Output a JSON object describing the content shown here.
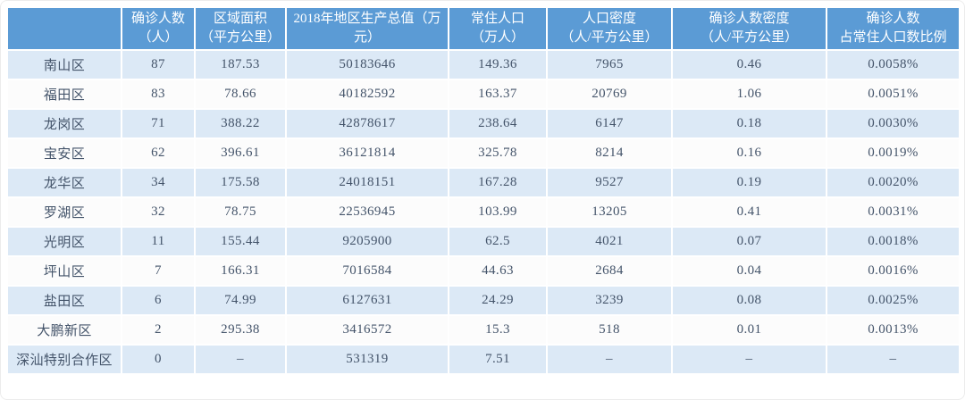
{
  "colors": {
    "header_bg": "#5b9bd5",
    "header_text": "#ffffff",
    "row_odd_bg": "#dce9f6",
    "row_even_bg": "#fcfcfc",
    "body_text": "#44546a",
    "separator": "#ffffff"
  },
  "chart_data": {
    "type": "table",
    "title": "",
    "columns": [
      "",
      "确诊人数\n（人）",
      "区域面积\n（平方公里）",
      "2018年地区生产总值（万\n元）",
      "常住人口\n（万人）",
      "人口密度\n（人/平方公里）",
      "确诊人数密度\n（人/平方公里）",
      "确诊人数\n占常住人口数比例"
    ],
    "rows": [
      [
        "南山区",
        "87",
        "187.53",
        "50183646",
        "149.36",
        "7965",
        "0.46",
        "0.0058%"
      ],
      [
        "福田区",
        "83",
        "78.66",
        "40182592",
        "163.37",
        "20769",
        "1.06",
        "0.0051%"
      ],
      [
        "龙岗区",
        "71",
        "388.22",
        "42878617",
        "238.64",
        "6147",
        "0.18",
        "0.0030%"
      ],
      [
        "宝安区",
        "62",
        "396.61",
        "36121814",
        "325.78",
        "8214",
        "0.16",
        "0.0019%"
      ],
      [
        "龙华区",
        "34",
        "175.58",
        "24018151",
        "167.28",
        "9527",
        "0.19",
        "0.0020%"
      ],
      [
        "罗湖区",
        "32",
        "78.75",
        "22536945",
        "103.99",
        "13205",
        "0.41",
        "0.0031%"
      ],
      [
        "光明区",
        "11",
        "155.44",
        "9205900",
        "62.5",
        "4021",
        "0.07",
        "0.0018%"
      ],
      [
        "坪山区",
        "7",
        "166.31",
        "7016584",
        "44.63",
        "2684",
        "0.04",
        "0.0016%"
      ],
      [
        "盐田区",
        "6",
        "74.99",
        "6127631",
        "24.29",
        "3239",
        "0.08",
        "0.0025%"
      ],
      [
        "大鹏新区",
        "2",
        "295.38",
        "3416572",
        "15.3",
        "518",
        "0.01",
        "0.0013%"
      ],
      [
        "深汕特别合作区",
        "0",
        "–",
        "531319",
        "7.51",
        "–",
        "–",
        "–"
      ]
    ]
  }
}
